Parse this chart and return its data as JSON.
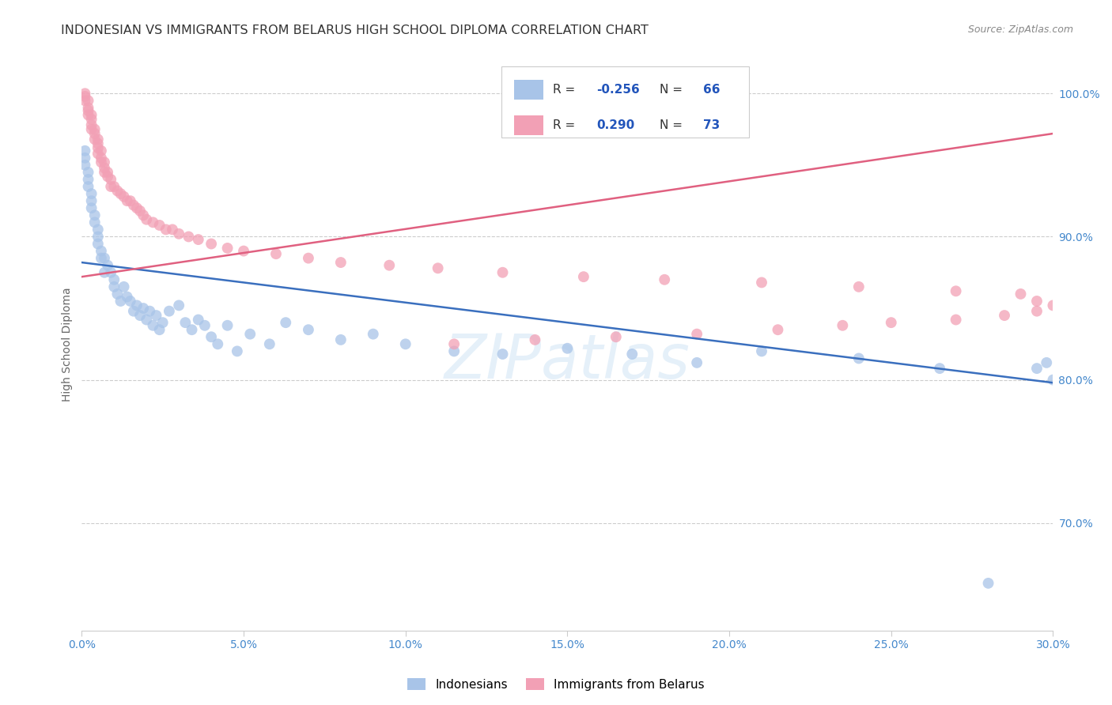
{
  "title": "INDONESIAN VS IMMIGRANTS FROM BELARUS HIGH SCHOOL DIPLOMA CORRELATION CHART",
  "source": "Source: ZipAtlas.com",
  "xlabel_ticks": [
    "0.0%",
    "5.0%",
    "10.0%",
    "15.0%",
    "20.0%",
    "25.0%",
    "30.0%"
  ],
  "ylabel_ticks": [
    "70.0%",
    "80.0%",
    "90.0%",
    "100.0%"
  ],
  "xlabel_vals": [
    0.0,
    0.05,
    0.1,
    0.15,
    0.2,
    0.25,
    0.3
  ],
  "ylabel_vals": [
    0.7,
    0.8,
    0.9,
    1.0
  ],
  "xmin": 0.0,
  "xmax": 0.3,
  "ymin": 0.625,
  "ymax": 1.025,
  "watermark": "ZIPatlas",
  "legend_label1": "Indonesians",
  "legend_label2": "Immigrants from Belarus",
  "r1": "-0.256",
  "n1": "66",
  "r2": "0.290",
  "n2": "73",
  "color_blue": "#a8c4e8",
  "color_pink": "#f2a0b5",
  "trendline_blue": "#3a6fbe",
  "trendline_pink": "#e06080",
  "trend_blue_x0": 0.0,
  "trend_blue_y0": 0.882,
  "trend_blue_x1": 0.3,
  "trend_blue_y1": 0.798,
  "trend_pink_x0": 0.0,
  "trend_pink_y0": 0.872,
  "trend_pink_x1": 0.3,
  "trend_pink_y1": 0.972,
  "indonesian_x": [
    0.001,
    0.001,
    0.001,
    0.002,
    0.002,
    0.002,
    0.003,
    0.003,
    0.003,
    0.004,
    0.004,
    0.005,
    0.005,
    0.005,
    0.006,
    0.006,
    0.007,
    0.007,
    0.008,
    0.009,
    0.01,
    0.01,
    0.011,
    0.012,
    0.013,
    0.014,
    0.015,
    0.016,
    0.017,
    0.018,
    0.019,
    0.02,
    0.021,
    0.022,
    0.023,
    0.024,
    0.025,
    0.027,
    0.03,
    0.032,
    0.034,
    0.036,
    0.038,
    0.04,
    0.042,
    0.045,
    0.048,
    0.052,
    0.058,
    0.063,
    0.07,
    0.08,
    0.09,
    0.1,
    0.115,
    0.13,
    0.15,
    0.17,
    0.19,
    0.21,
    0.24,
    0.265,
    0.28,
    0.295,
    0.3,
    0.298
  ],
  "indonesian_y": [
    0.96,
    0.955,
    0.95,
    0.945,
    0.94,
    0.935,
    0.93,
    0.925,
    0.92,
    0.915,
    0.91,
    0.905,
    0.9,
    0.895,
    0.89,
    0.885,
    0.885,
    0.875,
    0.88,
    0.875,
    0.87,
    0.865,
    0.86,
    0.855,
    0.865,
    0.858,
    0.855,
    0.848,
    0.852,
    0.845,
    0.85,
    0.842,
    0.848,
    0.838,
    0.845,
    0.835,
    0.84,
    0.848,
    0.852,
    0.84,
    0.835,
    0.842,
    0.838,
    0.83,
    0.825,
    0.838,
    0.82,
    0.832,
    0.825,
    0.84,
    0.835,
    0.828,
    0.832,
    0.825,
    0.82,
    0.818,
    0.822,
    0.818,
    0.812,
    0.82,
    0.815,
    0.808,
    0.658,
    0.808,
    0.8,
    0.812
  ],
  "belarus_x": [
    0.001,
    0.001,
    0.001,
    0.002,
    0.002,
    0.002,
    0.002,
    0.003,
    0.003,
    0.003,
    0.003,
    0.004,
    0.004,
    0.004,
    0.005,
    0.005,
    0.005,
    0.005,
    0.006,
    0.006,
    0.006,
    0.007,
    0.007,
    0.007,
    0.008,
    0.008,
    0.009,
    0.009,
    0.01,
    0.011,
    0.012,
    0.013,
    0.014,
    0.015,
    0.016,
    0.017,
    0.018,
    0.019,
    0.02,
    0.022,
    0.024,
    0.026,
    0.028,
    0.03,
    0.033,
    0.036,
    0.04,
    0.045,
    0.05,
    0.06,
    0.07,
    0.08,
    0.095,
    0.11,
    0.13,
    0.155,
    0.18,
    0.21,
    0.24,
    0.27,
    0.29,
    0.295,
    0.3,
    0.295,
    0.285,
    0.27,
    0.25,
    0.235,
    0.215,
    0.19,
    0.165,
    0.14,
    0.115
  ],
  "belarus_y": [
    1.0,
    0.998,
    0.995,
    0.995,
    0.99,
    0.988,
    0.985,
    0.985,
    0.982,
    0.978,
    0.975,
    0.975,
    0.972,
    0.968,
    0.968,
    0.965,
    0.962,
    0.958,
    0.96,
    0.955,
    0.952,
    0.952,
    0.948,
    0.945,
    0.945,
    0.942,
    0.94,
    0.935,
    0.935,
    0.932,
    0.93,
    0.928,
    0.925,
    0.925,
    0.922,
    0.92,
    0.918,
    0.915,
    0.912,
    0.91,
    0.908,
    0.905,
    0.905,
    0.902,
    0.9,
    0.898,
    0.895,
    0.892,
    0.89,
    0.888,
    0.885,
    0.882,
    0.88,
    0.878,
    0.875,
    0.872,
    0.87,
    0.868,
    0.865,
    0.862,
    0.86,
    0.855,
    0.852,
    0.848,
    0.845,
    0.842,
    0.84,
    0.838,
    0.835,
    0.832,
    0.83,
    0.828,
    0.825
  ]
}
